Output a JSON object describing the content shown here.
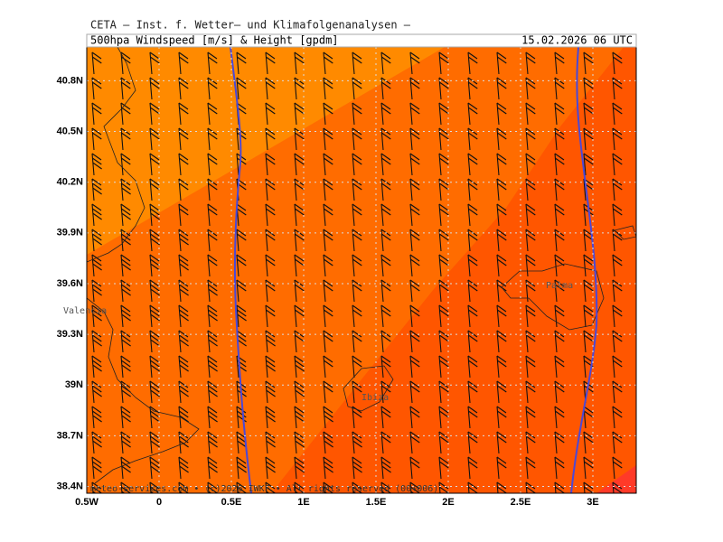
{
  "header": {
    "institute": "CETA – Inst. f. Wetter– und Klimafolgenanalysen –",
    "title": "500hpa Windspeed [m/s] & Height [gpdm]",
    "valid_time": "15.02.2026 06 UTC"
  },
  "map": {
    "xlim": [
      -0.5,
      3.3
    ],
    "ylim": [
      38.36,
      41.0
    ],
    "xticks": [
      {
        "value": -0.5,
        "label": "0.5W"
      },
      0,
      {
        "value": 0.5,
        "label": "0.5E"
      },
      {
        "value": 1,
        "label": "1E"
      },
      {
        "value": 1.5,
        "label": "1.5E"
      },
      {
        "value": 2,
        "label": "2E"
      },
      {
        "value": 2.5,
        "label": "2.5E"
      },
      {
        "value": 3,
        "label": "3E"
      }
    ],
    "yticks": [
      {
        "value": 38.4,
        "label": "38.4N"
      },
      {
        "value": 38.7,
        "label": "38.7N"
      },
      {
        "value": 39,
        "label": "39N"
      },
      {
        "value": 39.3,
        "label": "39.3N"
      },
      {
        "value": 39.6,
        "label": "39.6N"
      },
      {
        "value": 39.9,
        "label": "39.9N"
      },
      {
        "value": 40.2,
        "label": "40.2N"
      },
      {
        "value": 40.5,
        "label": "40.5N"
      },
      {
        "value": 40.8,
        "label": "40.8N"
      }
    ],
    "places": [
      "Valencia",
      "Palma",
      "Ibiza"
    ]
  },
  "footer": "meteo-services.com • (c)2026 IWKF • All rights reserved (00+006)"
}
